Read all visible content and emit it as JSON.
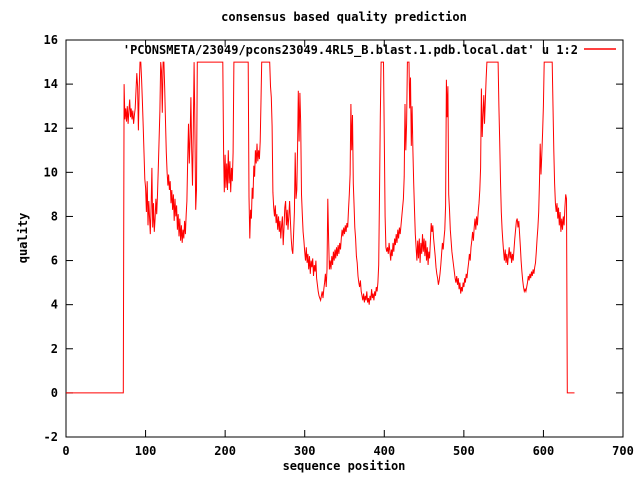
{
  "window": {
    "background": "#ffffff"
  },
  "chart": {
    "title": "consensus based quality prediction",
    "legend_label": "'PCONSMETA/23049/pcons23049.4RL5_B.blast.1.pdb.local.dat' u 1:2",
    "xlabel": "sequence position",
    "ylabel": "quality",
    "colors": {
      "series": "#ff0000",
      "axis": "#000000",
      "text": "#000000",
      "background": "#ffffff"
    }
  },
  "chart_data": {
    "type": "line",
    "title": "consensus based quality prediction",
    "xlabel": "sequence position",
    "ylabel": "quality",
    "xlim": [
      0,
      700
    ],
    "ylim": [
      -2,
      16
    ],
    "x_ticks": [
      0,
      100,
      200,
      300,
      400,
      500,
      600,
      700
    ],
    "y_ticks": [
      -2,
      0,
      2,
      4,
      6,
      8,
      10,
      12,
      14,
      16
    ],
    "grid": false,
    "legend_position": "top-right-inside",
    "series": [
      {
        "name": "'PCONSMETA/23049/pcons23049.4RL5_B.blast.1.pdb.local.dat' u 1:2",
        "color": "#ff0000",
        "x": [
          0,
          72,
          73,
          74,
          75,
          76,
          77,
          78,
          79,
          80,
          81,
          82,
          83,
          84,
          85,
          86,
          87,
          88,
          89,
          90,
          91,
          92,
          93,
          94,
          95,
          96,
          97,
          98,
          99,
          100,
          101,
          102,
          103,
          104,
          105,
          106,
          107,
          108,
          109,
          110,
          111,
          112,
          113,
          114,
          115,
          116,
          117,
          118,
          119,
          120,
          121,
          122,
          123,
          124,
          125,
          126,
          127,
          128,
          129,
          130,
          131,
          132,
          133,
          134,
          135,
          136,
          137,
          138,
          139,
          140,
          141,
          142,
          143,
          144,
          145,
          146,
          147,
          148,
          149,
          150,
          151,
          152,
          153,
          154,
          155,
          156,
          157,
          158,
          159,
          160,
          161,
          162,
          163,
          164,
          165,
          197,
          198,
          199,
          200,
          201,
          202,
          203,
          204,
          205,
          206,
          207,
          208,
          209,
          210,
          211,
          229,
          230,
          231,
          232,
          233,
          234,
          235,
          236,
          237,
          238,
          239,
          240,
          241,
          242,
          243,
          244,
          245,
          246,
          256,
          257,
          258,
          259,
          260,
          261,
          262,
          263,
          264,
          265,
          266,
          267,
          268,
          269,
          270,
          271,
          272,
          273,
          274,
          275,
          276,
          277,
          278,
          279,
          280,
          281,
          282,
          283,
          284,
          285,
          286,
          287,
          288,
          289,
          290,
          291,
          292,
          293,
          294,
          295,
          296,
          297,
          298,
          299,
          300,
          301,
          302,
          303,
          304,
          305,
          306,
          307,
          308,
          309,
          310,
          311,
          312,
          313,
          314,
          315,
          316,
          317,
          318,
          319,
          320,
          321,
          322,
          323,
          324,
          325,
          326,
          327,
          328,
          329,
          330,
          331,
          332,
          333,
          334,
          335,
          336,
          337,
          338,
          339,
          340,
          341,
          342,
          343,
          344,
          345,
          346,
          347,
          348,
          349,
          350,
          351,
          352,
          353,
          354,
          355,
          356,
          357,
          358,
          359,
          360,
          361,
          362,
          363,
          364,
          365,
          366,
          367,
          368,
          369,
          370,
          371,
          372,
          373,
          374,
          375,
          376,
          377,
          378,
          379,
          380,
          381,
          382,
          383,
          384,
          385,
          386,
          387,
          388,
          389,
          390,
          391,
          392,
          393,
          394,
          395,
          396,
          399,
          400,
          401,
          402,
          403,
          404,
          405,
          406,
          407,
          408,
          409,
          410,
          411,
          412,
          413,
          414,
          415,
          416,
          417,
          418,
          419,
          420,
          421,
          422,
          423,
          424,
          425,
          426,
          427,
          428,
          429,
          431,
          432,
          433,
          434,
          435,
          436,
          437,
          438,
          439,
          440,
          441,
          442,
          443,
          444,
          445,
          446,
          447,
          448,
          449,
          450,
          451,
          452,
          453,
          454,
          455,
          456,
          457,
          458,
          459,
          460,
          461,
          462,
          463,
          464,
          465,
          466,
          467,
          468,
          469,
          470,
          471,
          472,
          473,
          474,
          475,
          476,
          477,
          478,
          479,
          480,
          481,
          482,
          483,
          484,
          485,
          486,
          487,
          488,
          489,
          490,
          491,
          492,
          493,
          494,
          495,
          496,
          497,
          498,
          499,
          500,
          501,
          502,
          503,
          504,
          505,
          506,
          507,
          508,
          509,
          510,
          511,
          512,
          513,
          514,
          515,
          516,
          517,
          518,
          519,
          520,
          521,
          522,
          523,
          524,
          525,
          526,
          527,
          528,
          529,
          543,
          544,
          545,
          546,
          547,
          548,
          549,
          550,
          551,
          552,
          553,
          554,
          555,
          556,
          557,
          558,
          559,
          560,
          561,
          562,
          563,
          564,
          565,
          566,
          567,
          568,
          569,
          570,
          571,
          572,
          573,
          574,
          575,
          576,
          577,
          578,
          579,
          580,
          581,
          582,
          583,
          584,
          585,
          586,
          587,
          588,
          589,
          590,
          591,
          592,
          593,
          594,
          595,
          596,
          597,
          598,
          599,
          600,
          601,
          611,
          612,
          613,
          614,
          615,
          616,
          617,
          618,
          619,
          620,
          621,
          622,
          623,
          624,
          625,
          626,
          627,
          628,
          629,
          630,
          639
        ],
        "y": [
          0,
          0,
          14,
          12.4,
          12.9,
          12.3,
          13,
          12.2,
          12.8,
          13.3,
          12.5,
          12.9,
          12.4,
          12.8,
          12.2,
          12.6,
          12.9,
          13.7,
          14.5,
          13.9,
          11.9,
          13.8,
          15,
          15,
          14.2,
          13.2,
          12.1,
          10.9,
          9.7,
          9.3,
          8.2,
          9.6,
          7.6,
          8.7,
          7.9,
          7.2,
          8.4,
          10.2,
          7.5,
          8.6,
          7.3,
          7.9,
          8.8,
          8.1,
          9,
          10.2,
          11.5,
          12.8,
          15,
          14.6,
          12.7,
          15,
          15,
          13.8,
          12.3,
          10.9,
          10,
          9.4,
          9.9,
          9.2,
          9.6,
          8.6,
          9.2,
          8.3,
          9,
          7.8,
          8.8,
          8,
          8.5,
          7.4,
          8.1,
          7.1,
          7.9,
          6.9,
          7.6,
          6.8,
          7.4,
          7,
          7.8,
          7.2,
          8.1,
          8.7,
          10.6,
          12.2,
          10.4,
          11.6,
          13.4,
          11,
          9.4,
          11.9,
          15,
          12,
          8.3,
          9.2,
          15,
          15,
          10.9,
          9.1,
          10.8,
          9.3,
          10.4,
          9.2,
          11,
          9.5,
          10.5,
          9.1,
          10.2,
          9.6,
          10.9,
          15,
          15,
          8.9,
          7,
          8.3,
          7.9,
          9.3,
          8.8,
          10.3,
          9.8,
          11,
          10.4,
          11.3,
          10.5,
          11,
          10.6,
          11.4,
          13,
          15,
          15,
          13.9,
          13.4,
          12.1,
          9.1,
          8.4,
          8,
          8.5,
          7.7,
          8.1,
          7.4,
          8,
          7.3,
          7.8,
          7,
          7.6,
          8,
          6.7,
          7.5,
          8.4,
          8.7,
          7.6,
          8.3,
          7.4,
          8,
          8.7,
          7.8,
          7,
          6.5,
          6.3,
          7.2,
          8.2,
          10.9,
          8.8,
          9.2,
          11.2,
          13.7,
          11.4,
          13.6,
          12.2,
          9,
          8.1,
          7.3,
          6.9,
          6.4,
          6,
          6.6,
          5.9,
          6.3,
          5.6,
          6.2,
          5.4,
          6,
          5.7,
          6.1,
          5.3,
          5.8,
          5.5,
          6,
          5.2,
          4.9,
          4.6,
          4.4,
          4.3,
          4.2,
          4.4,
          4.6,
          4.3,
          4.7,
          5,
          5.4,
          4.8,
          5.6,
          8.8,
          7,
          5.6,
          6,
          5.6,
          6.2,
          5.8,
          6.4,
          6,
          6.5,
          6.1,
          6.6,
          6.2,
          6.7,
          6.3,
          6.8,
          6.5,
          7,
          7.4,
          7.1,
          7.5,
          7.2,
          7.6,
          7.3,
          7.7,
          7.5,
          8.3,
          9,
          9.9,
          13.1,
          11,
          12.6,
          9.5,
          8.6,
          7.5,
          7,
          6.2,
          5.9,
          5.3,
          5,
          4.8,
          5.1,
          4.6,
          4.4,
          4.2,
          4.5,
          4.1,
          4.4,
          4.2,
          4.6,
          4.1,
          4.3,
          4,
          4.4,
          4.2,
          4.7,
          4.3,
          4.5,
          4.2,
          4.6,
          4.4,
          4.8,
          4.6,
          5,
          5.8,
          9,
          12.5,
          15,
          15,
          11.5,
          8,
          6.6,
          6.4,
          6.6,
          6.3,
          6.8,
          6.4,
          6,
          6.5,
          6.2,
          6.8,
          6.4,
          7,
          6.7,
          7.2,
          6.8,
          7.4,
          7,
          7.5,
          7.2,
          7.6,
          8,
          8.4,
          8.8,
          9.8,
          13.1,
          11,
          12.2,
          15,
          15,
          12.9,
          14.3,
          11.2,
          13,
          11,
          9.5,
          8.3,
          7.2,
          6.6,
          6,
          6.9,
          6.1,
          7,
          5.9,
          6.8,
          6.3,
          7.2,
          6.4,
          7,
          6.2,
          6.9,
          6,
          6.6,
          5.8,
          6.4,
          6.1,
          6.9,
          7.7,
          7.3,
          7.6,
          7,
          6.6,
          6.2,
          5.7,
          5.4,
          5.2,
          4.9,
          5.1,
          5.4,
          5.8,
          6.3,
          6.8,
          6.5,
          7,
          7.4,
          8.5,
          14.2,
          12.5,
          13.9,
          9,
          8.3,
          7.4,
          6.9,
          6.4,
          6.1,
          5.8,
          5.5,
          5.2,
          5,
          5.3,
          4.9,
          5.2,
          4.7,
          5,
          4.5,
          4.8,
          4.6,
          5,
          4.8,
          5.2,
          5,
          5.4,
          5.2,
          5.6,
          5.9,
          6.3,
          6,
          6.6,
          6.9,
          7.3,
          6.9,
          7.5,
          7.9,
          7.4,
          8,
          7.6,
          8.2,
          8.6,
          9.2,
          10.2,
          13.8,
          11.6,
          12.6,
          13.5,
          12.2,
          13.2,
          14.2,
          15,
          15,
          13,
          11.4,
          9.6,
          8.2,
          7.4,
          6.9,
          6.4,
          6,
          6.5,
          5.9,
          6.3,
          5.8,
          6.2,
          6.6,
          6.1,
          6.4,
          5.9,
          6.3,
          6,
          6.5,
          7,
          7.4,
          7.8,
          7.9,
          7.5,
          7.8,
          7.2,
          6.6,
          6,
          5.5,
          5.1,
          4.8,
          4.6,
          4.7,
          4.6,
          4.8,
          5,
          5.3,
          5.1,
          5.4,
          5.2,
          5.5,
          5.3,
          5.6,
          5.4,
          5.7,
          5.9,
          6.4,
          7,
          7.5,
          8.2,
          9.6,
          11.3,
          9.9,
          10.8,
          11.8,
          13,
          15,
          15,
          13,
          11,
          9.5,
          8.6,
          8.2,
          8.6,
          7.9,
          8.4,
          7.6,
          8.2,
          7.3,
          7.9,
          7.4,
          8,
          7.6,
          8.4,
          9,
          8.8,
          0,
          0
        ]
      }
    ]
  }
}
